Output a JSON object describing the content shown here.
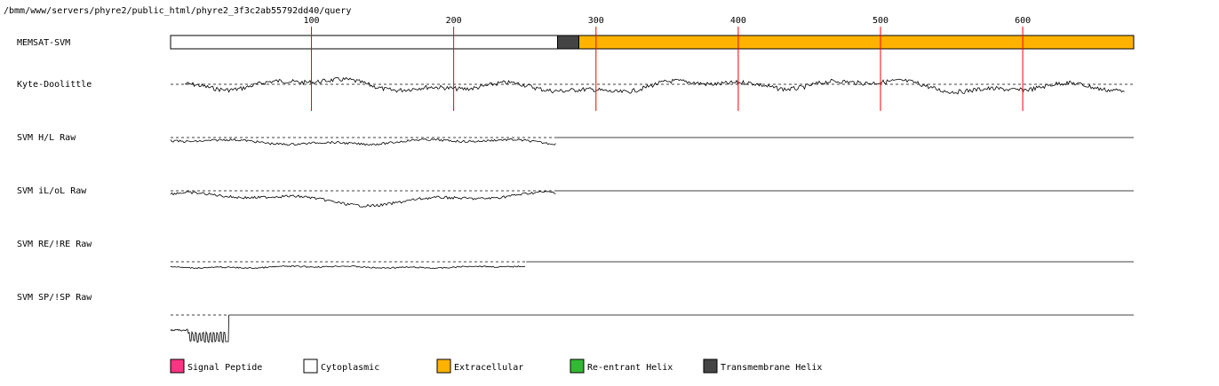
{
  "path": "/bmm/www/servers/phyre2/public_html/phyre2_3f3c2ab55792dd40/query",
  "sequence_length": 678,
  "axis": {
    "ticks": [
      {
        "value": 100,
        "label": "100"
      },
      {
        "value": 200,
        "label": "200"
      },
      {
        "value": 300,
        "label": "300"
      },
      {
        "value": 400,
        "label": "400"
      },
      {
        "value": 500,
        "label": "500"
      },
      {
        "value": 600,
        "label": "600"
      }
    ]
  },
  "tracks": {
    "memsat": {
      "label": "MEMSAT-SVM",
      "segments": [
        {
          "type": "cytoplasmic",
          "start": 1,
          "end": 272
        },
        {
          "type": "transmembrane",
          "start": 273,
          "end": 287
        },
        {
          "type": "extracellular",
          "start": 288,
          "end": 678
        }
      ]
    },
    "kd": {
      "label": "Kyte-Doolittle",
      "end": 672
    },
    "hl": {
      "label": "SVM H/L Raw",
      "end": 272
    },
    "il": {
      "label": "SVM iL/oL Raw",
      "end": 272
    },
    "re": {
      "label": "SVM RE/!RE Raw",
      "end": 251
    },
    "sp": {
      "label": "SVM SP/!SP Raw",
      "end": 42
    }
  },
  "colors": {
    "signal": "#ff3383",
    "cytoplasmic": "#ffffff",
    "extracellular": "#ffb300",
    "reentrant": "#33b833",
    "transmembrane": "#444444",
    "tick_line": "#ff0000"
  },
  "legend": [
    {
      "key": "signal",
      "label": "Signal Peptide"
    },
    {
      "key": "cytoplasmic",
      "label": "Cytoplasmic"
    },
    {
      "key": "extracellular",
      "label": "Extracellular"
    },
    {
      "key": "reentrant",
      "label": "Re-entrant Helix"
    },
    {
      "key": "transmembrane",
      "label": "Transmembrane Helix"
    }
  ]
}
